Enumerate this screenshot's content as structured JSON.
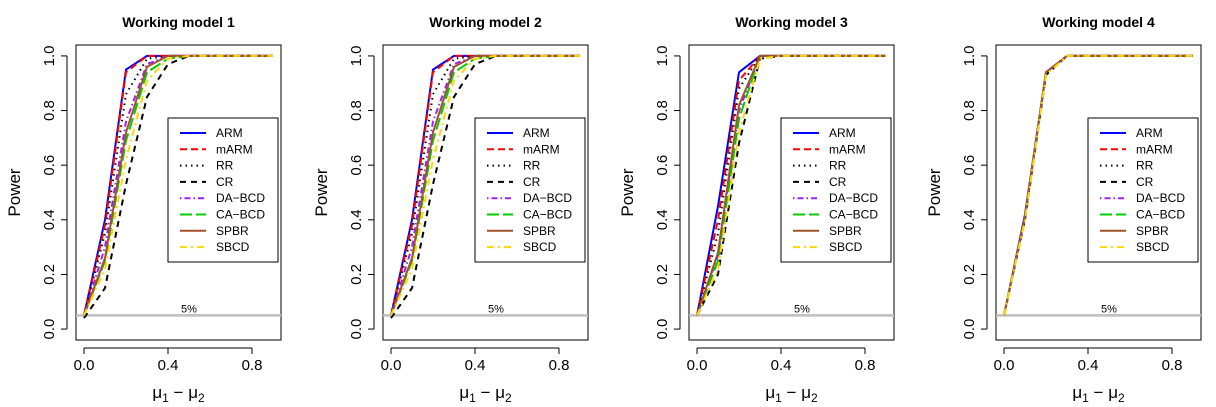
{
  "chart_data": {
    "type": "line",
    "ylabel": "Power",
    "xlabel": "μ1 − μ2",
    "xlabel_main": "μ",
    "xlabel_sub1": "1",
    "xlabel_minus": " − ",
    "xlabel_sub2": "2",
    "xlim": [
      0,
      0.9
    ],
    "ylim": [
      0,
      1
    ],
    "x_ticks": [
      "0.0",
      "0.4",
      "0.8"
    ],
    "y_ticks": [
      "0.0",
      "0.2",
      "0.4",
      "0.6",
      "0.8",
      "1.0"
    ],
    "reference_line": {
      "value": 0.05,
      "label": "5%",
      "color": "#bebebe"
    },
    "x": [
      0,
      0.1,
      0.2,
      0.3,
      0.4,
      0.5,
      0.6,
      0.7,
      0.8,
      0.9
    ],
    "series_style": [
      {
        "name": "ARM",
        "color": "#0000ff",
        "dash": ""
      },
      {
        "name": "mARM",
        "color": "#ff0000",
        "dash": "7,4"
      },
      {
        "name": "RR",
        "color": "#000000",
        "dash": "1.5,4"
      },
      {
        "name": "CR",
        "color": "#000000",
        "dash": "6,5"
      },
      {
        "name": "DA−BCD",
        "color": "#a020f0",
        "dash": "1.5,3,6,3"
      },
      {
        "name": "CA−BCD",
        "color": "#00cd00",
        "dash": "12,4"
      },
      {
        "name": "SPBR",
        "color": "#a0522d",
        "dash": ""
      },
      {
        "name": "SBCD",
        "color": "#ffd700",
        "dash": "7,4,2,4"
      }
    ],
    "panels": [
      {
        "title": "Working model 1",
        "series": [
          {
            "name": "ARM",
            "values": [
              0.05,
              0.4,
              0.95,
              1.0,
              1.0,
              1.0,
              1.0,
              1.0,
              1.0,
              1.0
            ]
          },
          {
            "name": "mARM",
            "values": [
              0.05,
              0.38,
              0.94,
              1.0,
              1.0,
              1.0,
              1.0,
              1.0,
              1.0,
              1.0
            ]
          },
          {
            "name": "RR",
            "values": [
              0.05,
              0.35,
              0.86,
              0.99,
              1.0,
              1.0,
              1.0,
              1.0,
              1.0,
              1.0
            ]
          },
          {
            "name": "CR",
            "values": [
              0.04,
              0.15,
              0.53,
              0.85,
              0.97,
              1.0,
              1.0,
              1.0,
              1.0,
              1.0
            ]
          },
          {
            "name": "DA−BCD",
            "values": [
              0.05,
              0.3,
              0.76,
              0.97,
              1.0,
              1.0,
              1.0,
              1.0,
              1.0,
              1.0
            ]
          },
          {
            "name": "CA−BCD",
            "values": [
              0.05,
              0.25,
              0.69,
              0.94,
              0.99,
              1.0,
              1.0,
              1.0,
              1.0,
              1.0
            ]
          },
          {
            "name": "SPBR",
            "values": [
              0.05,
              0.26,
              0.72,
              0.96,
              1.0,
              1.0,
              1.0,
              1.0,
              1.0,
              1.0
            ]
          },
          {
            "name": "SBCD",
            "values": [
              0.05,
              0.22,
              0.62,
              0.91,
              0.99,
              1.0,
              1.0,
              1.0,
              1.0,
              1.0
            ]
          }
        ]
      },
      {
        "title": "Working model 2",
        "series": [
          {
            "name": "ARM",
            "values": [
              0.05,
              0.4,
              0.95,
              1.0,
              1.0,
              1.0,
              1.0,
              1.0,
              1.0,
              1.0
            ]
          },
          {
            "name": "mARM",
            "values": [
              0.05,
              0.38,
              0.94,
              1.0,
              1.0,
              1.0,
              1.0,
              1.0,
              1.0,
              1.0
            ]
          },
          {
            "name": "RR",
            "values": [
              0.05,
              0.35,
              0.86,
              0.99,
              1.0,
              1.0,
              1.0,
              1.0,
              1.0,
              1.0
            ]
          },
          {
            "name": "CR",
            "values": [
              0.04,
              0.15,
              0.53,
              0.85,
              0.97,
              1.0,
              1.0,
              1.0,
              1.0,
              1.0
            ]
          },
          {
            "name": "DA−BCD",
            "values": [
              0.05,
              0.3,
              0.76,
              0.97,
              1.0,
              1.0,
              1.0,
              1.0,
              1.0,
              1.0
            ]
          },
          {
            "name": "CA−BCD",
            "values": [
              0.05,
              0.25,
              0.69,
              0.94,
              0.99,
              1.0,
              1.0,
              1.0,
              1.0,
              1.0
            ]
          },
          {
            "name": "SPBR",
            "values": [
              0.05,
              0.26,
              0.72,
              0.96,
              1.0,
              1.0,
              1.0,
              1.0,
              1.0,
              1.0
            ]
          },
          {
            "name": "SBCD",
            "values": [
              0.05,
              0.22,
              0.62,
              0.91,
              0.99,
              1.0,
              1.0,
              1.0,
              1.0,
              1.0
            ]
          }
        ]
      },
      {
        "title": "Working model 3",
        "series": [
          {
            "name": "ARM",
            "values": [
              0.05,
              0.45,
              0.94,
              1.0,
              1.0,
              1.0,
              1.0,
              1.0,
              1.0,
              1.0
            ]
          },
          {
            "name": "mARM",
            "values": [
              0.05,
              0.4,
              0.91,
              1.0,
              1.0,
              1.0,
              1.0,
              1.0,
              1.0,
              1.0
            ]
          },
          {
            "name": "RR",
            "values": [
              0.05,
              0.35,
              0.88,
              1.0,
              1.0,
              1.0,
              1.0,
              1.0,
              1.0,
              1.0
            ]
          },
          {
            "name": "CR",
            "values": [
              0.05,
              0.2,
              0.68,
              0.99,
              1.0,
              1.0,
              1.0,
              1.0,
              1.0,
              1.0
            ]
          },
          {
            "name": "DA−BCD",
            "values": [
              0.05,
              0.27,
              0.8,
              1.0,
              1.0,
              1.0,
              1.0,
              1.0,
              1.0,
              1.0
            ]
          },
          {
            "name": "CA−BCD",
            "values": [
              0.05,
              0.25,
              0.77,
              1.0,
              1.0,
              1.0,
              1.0,
              1.0,
              1.0,
              1.0
            ]
          },
          {
            "name": "SPBR",
            "values": [
              0.05,
              0.28,
              0.82,
              1.0,
              1.0,
              1.0,
              1.0,
              1.0,
              1.0,
              1.0
            ]
          },
          {
            "name": "SBCD",
            "values": [
              0.05,
              0.22,
              0.72,
              0.99,
              1.0,
              1.0,
              1.0,
              1.0,
              1.0,
              1.0
            ]
          }
        ]
      },
      {
        "title": "Working model 4",
        "series": [
          {
            "name": "ARM",
            "values": [
              0.05,
              0.42,
              0.94,
              1.0,
              1.0,
              1.0,
              1.0,
              1.0,
              1.0,
              1.0
            ]
          },
          {
            "name": "mARM",
            "values": [
              0.05,
              0.41,
              0.94,
              1.0,
              1.0,
              1.0,
              1.0,
              1.0,
              1.0,
              1.0
            ]
          },
          {
            "name": "RR",
            "values": [
              0.05,
              0.41,
              0.94,
              1.0,
              1.0,
              1.0,
              1.0,
              1.0,
              1.0,
              1.0
            ]
          },
          {
            "name": "CR",
            "values": [
              0.05,
              0.4,
              0.93,
              1.0,
              1.0,
              1.0,
              1.0,
              1.0,
              1.0,
              1.0
            ]
          },
          {
            "name": "DA−BCD",
            "values": [
              0.05,
              0.41,
              0.94,
              1.0,
              1.0,
              1.0,
              1.0,
              1.0,
              1.0,
              1.0
            ]
          },
          {
            "name": "CA−BCD",
            "values": [
              0.05,
              0.41,
              0.94,
              1.0,
              1.0,
              1.0,
              1.0,
              1.0,
              1.0,
              1.0
            ]
          },
          {
            "name": "SPBR",
            "values": [
              0.05,
              0.41,
              0.94,
              1.0,
              1.0,
              1.0,
              1.0,
              1.0,
              1.0,
              1.0
            ]
          },
          {
            "name": "SBCD",
            "values": [
              0.05,
              0.4,
              0.93,
              1.0,
              1.0,
              1.0,
              1.0,
              1.0,
              1.0,
              1.0
            ]
          }
        ]
      }
    ]
  }
}
